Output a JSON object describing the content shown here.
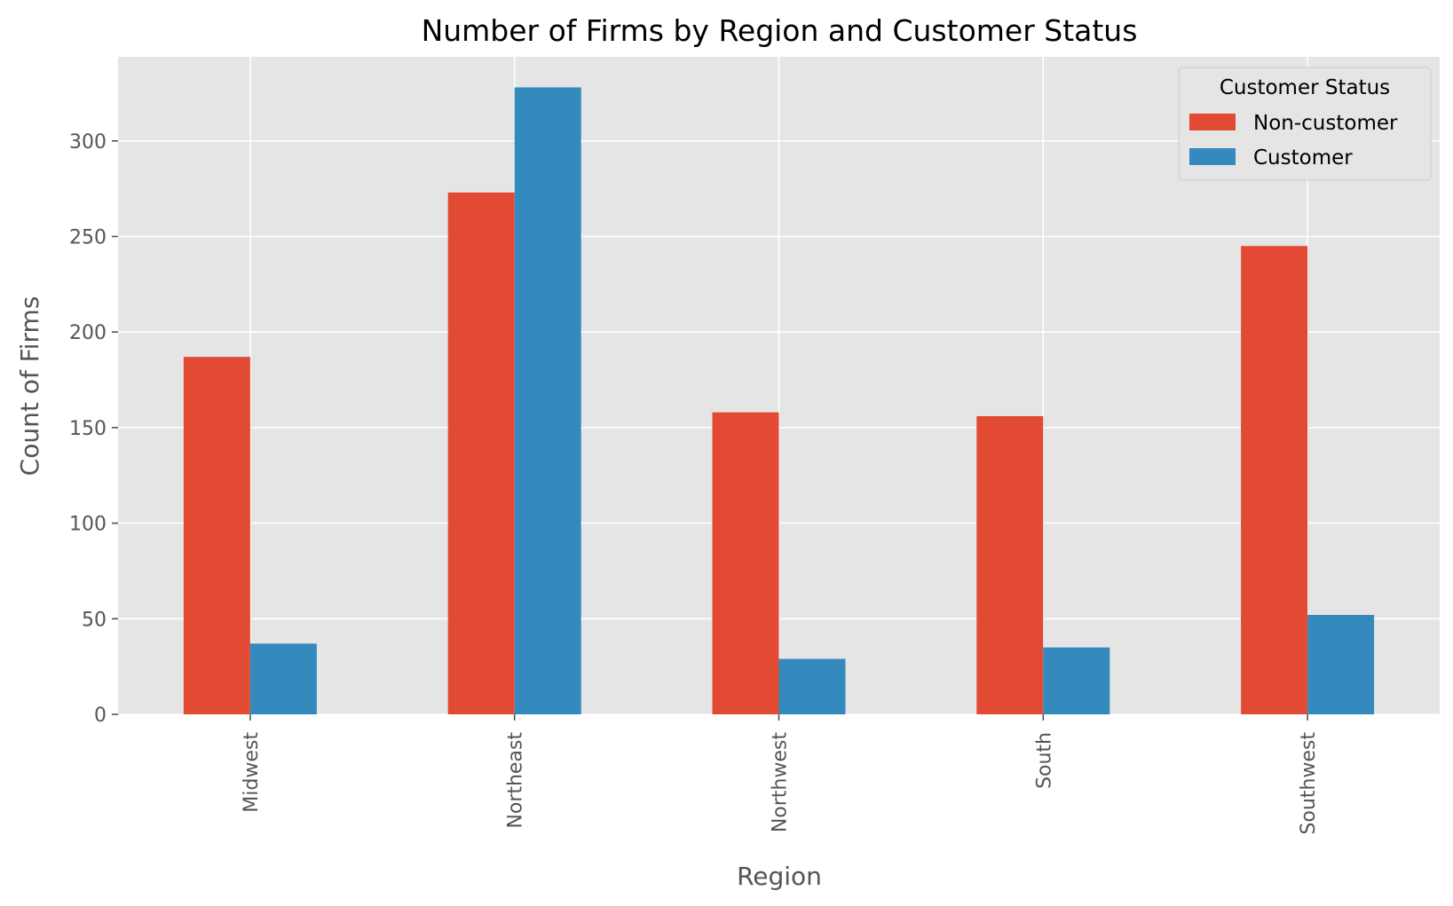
{
  "chart_data": {
    "type": "bar",
    "title": "Number of Firms by Region and Customer Status",
    "xlabel": "Region",
    "ylabel": "Count of Firms",
    "categories": [
      "Midwest",
      "Northeast",
      "Northwest",
      "South",
      "Southwest"
    ],
    "series": [
      {
        "name": "Non-customer",
        "color": "#E24A33",
        "values": [
          187,
          273,
          158,
          156,
          245
        ]
      },
      {
        "name": "Customer",
        "color": "#348ABD",
        "values": [
          37,
          328,
          29,
          35,
          52
        ]
      }
    ],
    "ylim": [
      0,
      344
    ],
    "yticks": [
      0,
      50,
      100,
      150,
      200,
      250,
      300
    ],
    "grid": true,
    "legend": {
      "title": "Customer Status",
      "placement": "top-right"
    },
    "plot_background": "#E5E5E5",
    "grid_color": "#FFFFFF"
  }
}
